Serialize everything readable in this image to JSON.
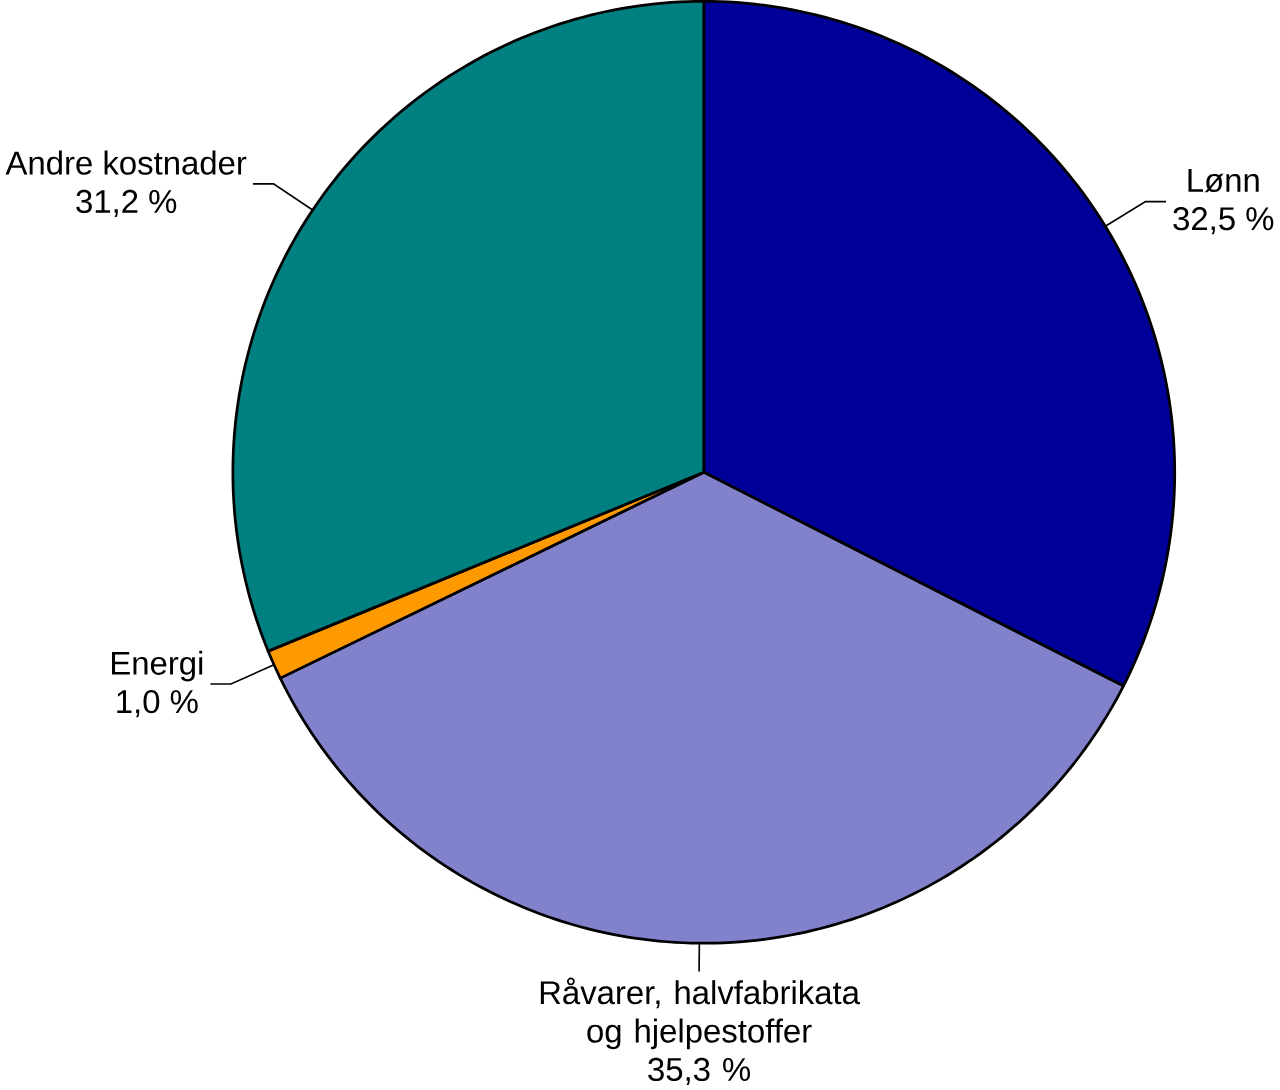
{
  "chart_data": {
    "type": "pie",
    "categories": [
      "Lønn",
      "Råvarer, halvfabrikata og hjelpestoffer",
      "Energi",
      "Andre kostnader"
    ],
    "values": [
      32.5,
      35.3,
      1.0,
      31.2
    ],
    "colors": [
      "#000099",
      "#8282cc",
      "#ff9900",
      "#008080"
    ],
    "value_labels": [
      "32,5 %",
      "35,3 %",
      "1,0 %",
      "31,2 %"
    ]
  }
}
